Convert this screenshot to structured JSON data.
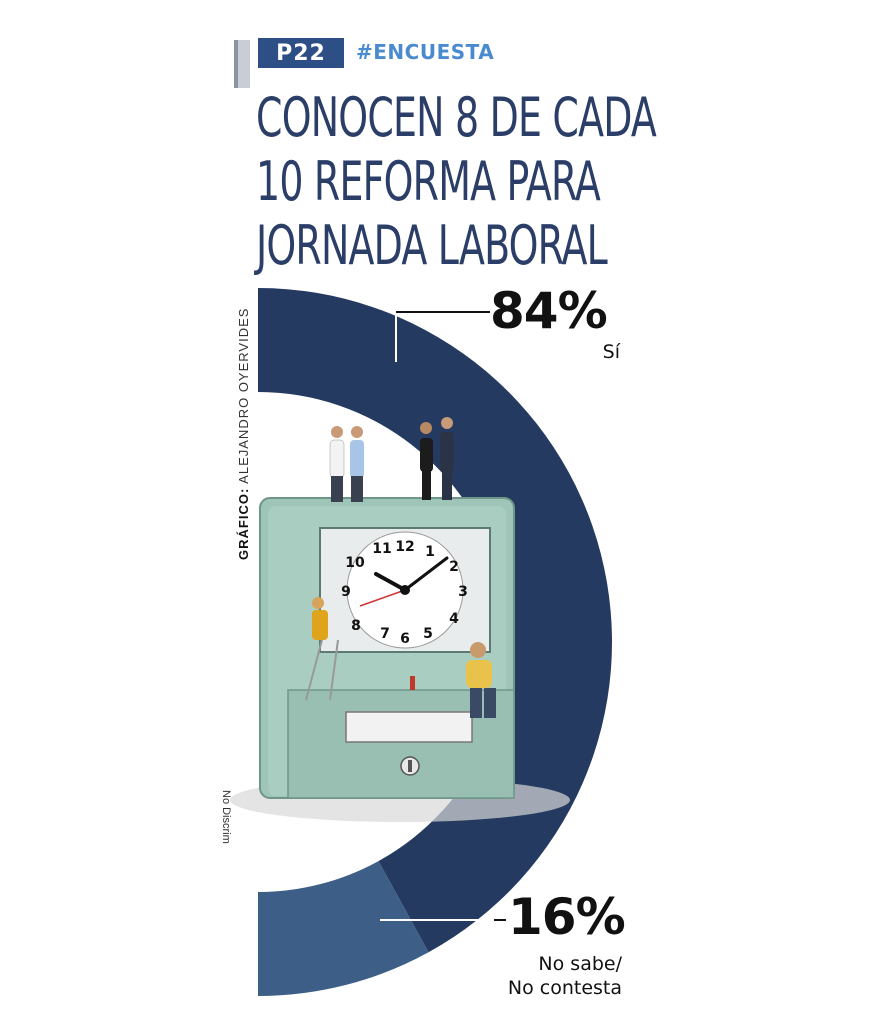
{
  "header": {
    "page_tag": "P22",
    "hashtag": "#ENCUESTA",
    "headline_lines": [
      "CONOCEN 8 DE CADA",
      "10 REFORMA PARA",
      "JORNADA LABORAL"
    ]
  },
  "credit": {
    "label": "GRÁFICO:",
    "author": "ALEJANDRO OYERVIDES"
  },
  "side_note": "No Discrim",
  "chart_data": {
    "type": "pie",
    "title": "CONOCEN 8 DE CADA 10 REFORMA PARA JORNADA LABORAL",
    "categories": [
      "Sí",
      "No sabe/ No contesta"
    ],
    "values": [
      84,
      16
    ],
    "labels": [
      "84%",
      "16%"
    ],
    "colors": [
      "#253a60",
      "#3d5f87"
    ],
    "style": "half-donut"
  },
  "labels": {
    "si_pct": "84%",
    "si_name": "Sí",
    "no_pct": "16%",
    "no_name_line1": "No sabe/",
    "no_name_line2": "No contesta"
  }
}
